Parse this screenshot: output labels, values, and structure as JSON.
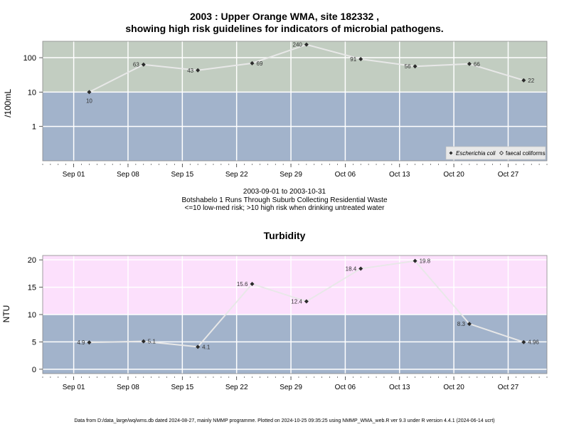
{
  "header": {
    "title_line1": "2003 : Upper Orange WMA, site 182332 ,",
    "title_line2": "showing high risk guidelines for indicators of microbial pathogens."
  },
  "middle": {
    "line1": "2003-09-01 to 2003-10-31",
    "line2": "Botshabelo 1 Runs Through Suburb Collecting Residential Waste",
    "line3": "<=10 low-med risk; >10 high risk when drinking untreated water"
  },
  "footer": {
    "text": "Data from D:/data_large/wq/wms.db dated 2024-08-27, mainly NMMP programme. Plotted on 2024-10-25 09:35:25 using NMMP_WMA_web.R ver 9.3 under R version 4.4.1 (2024-06-14 ucrt)"
  },
  "colors": {
    "high_band_top": "#c2cdc1",
    "low_band": "#a2b3cb",
    "high_band_bottom": "#fce0fc",
    "line": "#e8e8e8",
    "marker": "#2b2b2b"
  },
  "chart_data": [
    {
      "type": "line",
      "title": "",
      "ylabel": "/100mL",
      "yscale": "log",
      "ylim": [
        0.1,
        300
      ],
      "yticks": [
        1,
        10,
        100
      ],
      "ytick_labels": [
        "1",
        "10",
        "100"
      ],
      "xlim": [
        "2003-08-28",
        "2003-11-01"
      ],
      "xticks": [
        "2003-09-01",
        "2003-09-08",
        "2003-09-15",
        "2003-09-22",
        "2003-09-29",
        "2003-10-06",
        "2003-10-13",
        "2003-10-20",
        "2003-10-27"
      ],
      "xtick_labels": [
        "Sep 01",
        "Sep 08",
        "Sep 15",
        "Sep 22",
        "Sep 29",
        "Oct 06",
        "Oct 13",
        "Oct 20",
        "Oct 27"
      ],
      "threshold": 10,
      "grid": true,
      "legend_position": "bottom-right",
      "legend": [
        "Escherichia coli",
        "faecal coliforms"
      ],
      "series": [
        {
          "name": "Escherichia coli",
          "x": [
            "2003-09-03",
            "2003-09-10",
            "2003-09-17",
            "2003-09-24",
            "2003-10-01",
            "2003-10-08",
            "2003-10-15",
            "2003-10-22",
            "2003-10-29"
          ],
          "values": [
            10,
            63,
            43,
            69,
            240,
            91,
            56,
            66,
            22
          ],
          "labels": [
            "10",
            "63",
            "43",
            "69",
            "240",
            "91",
            "56",
            "66",
            "22"
          ],
          "label_side": [
            "below",
            "left",
            "left",
            "right",
            "left",
            "left",
            "left",
            "right",
            "right"
          ]
        }
      ]
    },
    {
      "type": "line",
      "title": "Turbidity",
      "ylabel": "NTU",
      "ylim": [
        -0.8,
        20.8
      ],
      "yticks": [
        0,
        5,
        10,
        15,
        20
      ],
      "ytick_labels": [
        "0",
        "5",
        "10",
        "15",
        "20"
      ],
      "xlim": [
        "2003-08-28",
        "2003-11-01"
      ],
      "xticks": [
        "2003-09-01",
        "2003-09-08",
        "2003-09-15",
        "2003-09-22",
        "2003-09-29",
        "2003-10-06",
        "2003-10-13",
        "2003-10-20",
        "2003-10-27"
      ],
      "xtick_labels": [
        "Sep 01",
        "Sep 08",
        "Sep 15",
        "Sep 22",
        "Sep 29",
        "Oct 06",
        "Oct 13",
        "Oct 20",
        "Oct 27"
      ],
      "threshold": 10,
      "grid": true,
      "series": [
        {
          "x": [
            "2003-09-03",
            "2003-09-10",
            "2003-09-17",
            "2003-09-24",
            "2003-10-01",
            "2003-10-08",
            "2003-10-15",
            "2003-10-22",
            "2003-10-29"
          ],
          "values": [
            4.9,
            5.1,
            4.1,
            15.6,
            12.4,
            18.4,
            19.8,
            8.3,
            4.96
          ],
          "labels": [
            "4.9",
            "5.1",
            "4.1",
            "15.6",
            "12.4",
            "18.4",
            "19.8",
            "8.3",
            "4.96"
          ],
          "label_side": [
            "left",
            "right",
            "right",
            "left",
            "left",
            "left",
            "right",
            "left",
            "right"
          ]
        }
      ]
    }
  ]
}
